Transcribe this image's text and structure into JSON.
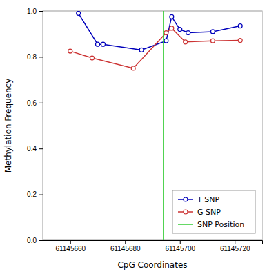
{
  "chart_data": {
    "type": "line",
    "xlabel": "CpG Coordinates",
    "ylabel": "Methylation Frequency",
    "marker": "circle",
    "grid": false,
    "legend": "lower right",
    "xlim": [
      61145650,
      61145730
    ],
    "xticks": [
      61145660,
      61145680,
      61145700,
      61145720
    ],
    "ylim": [
      0.0,
      1.0
    ],
    "yticks": [
      {
        "value": 0.0,
        "label": "0.0"
      },
      0.2,
      0.4,
      0.6,
      0.8,
      {
        "value": 1.0,
        "label": "1.0"
      }
    ],
    "series": [
      {
        "name": "T SNP",
        "color": "#0000BB",
        "x": [
          61145663,
          61145670,
          61145672,
          61145686,
          61145695,
          61145697,
          61145700,
          61145703,
          61145712,
          61145722
        ],
        "values": [
          0.99,
          0.855,
          0.855,
          0.83,
          0.87,
          0.975,
          0.92,
          0.905,
          0.91,
          0.935
        ]
      },
      {
        "name": "G SNP",
        "color": "#CC3333",
        "x": [
          61145660,
          61145668,
          61145683,
          61145695,
          61145697,
          61145702,
          61145712,
          61145722
        ],
        "values": [
          0.825,
          0.795,
          0.75,
          0.905,
          0.925,
          0.865,
          0.87,
          0.872
        ]
      },
      {
        "name": "SNP Position",
        "type": "vline",
        "color": "#33CC33",
        "x": [
          61145694
        ]
      }
    ]
  }
}
